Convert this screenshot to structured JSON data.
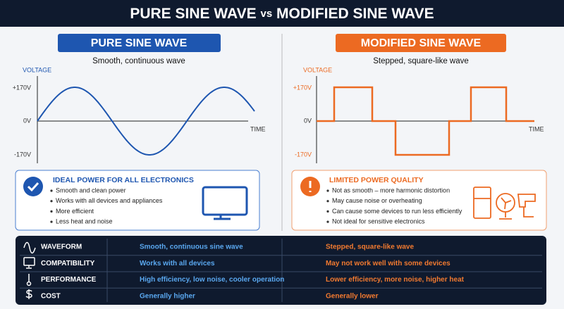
{
  "header": {
    "title": [
      "PURE SINE WAVE",
      "vs",
      "MODIFIED SINE WAVE"
    ]
  },
  "left": {
    "badge": "PURE SINE WAVE",
    "subtitle": "Smooth, continuous wave",
    "axis": {
      "y_label": "VOLTAGE",
      "x_label": "TIME",
      "ticks": [
        "+170V",
        "0V",
        "-170V"
      ]
    },
    "box": {
      "title": "IDEAL POWER FOR ALL ELECTRONICS",
      "bullets": [
        "Smooth and clean power",
        "Works with all devices and appliances",
        "More efficient",
        "Less heat and noise"
      ]
    }
  },
  "right": {
    "badge": "MODIFIED SINE WAVE",
    "subtitle": "Stepped, square-like wave",
    "axis": {
      "y_label": "VOLTAGE",
      "x_label": "TIME",
      "ticks": [
        "+170V",
        "0V",
        "-170V"
      ]
    },
    "box": {
      "title": "LIMITED POWER QUALITY",
      "bullets": [
        "Not as smooth – more harmonic distortion",
        "May cause noise or overheating",
        "Can cause some devices to run less efficiently",
        "Not ideal for sensitive electronics"
      ]
    }
  },
  "table": {
    "rows": [
      [
        "WAVEFORM",
        "Smooth, continuous sine wave",
        "Stepped, square-like wave"
      ],
      [
        "COMPATIBILITY",
        "Works with all devices",
        "May not work well with some devices"
      ],
      [
        "PERFORMANCE",
        "High efficiency, low noise, cooler operation",
        "Lower efficiency, more noise, higher heat"
      ],
      [
        "COST",
        "Generally higher",
        "Generally lower"
      ]
    ]
  }
}
